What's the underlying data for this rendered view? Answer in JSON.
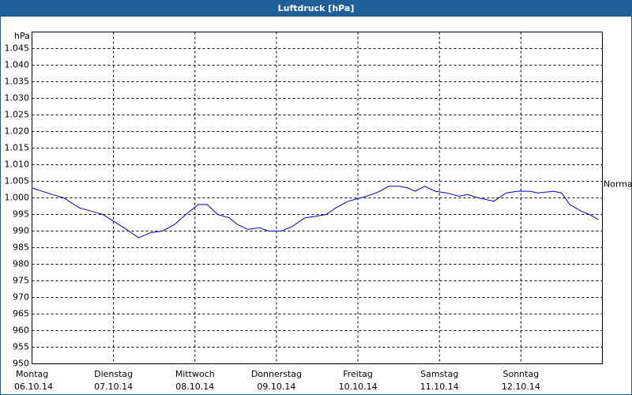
{
  "chart_data": {
    "type": "line",
    "title": "Luftdruck [hPa]",
    "y_unit": "hPa",
    "annotation": {
      "text": "Normal",
      "value": 1004
    },
    "xlim": [
      0,
      7
    ],
    "xticks": [
      {
        "value": 0,
        "label": "06.10.14"
      },
      {
        "value": 1,
        "label": "07.10.14"
      },
      {
        "value": 2,
        "label": "08.10.14"
      },
      {
        "value": 3,
        "label": "09.10.14"
      },
      {
        "value": 4,
        "label": "10.10.14"
      },
      {
        "value": 5,
        "label": "11.10.14"
      },
      {
        "value": 6,
        "label": "12.10.14"
      }
    ],
    "weekdays": [
      "Montag",
      "Dienstag",
      "Mittwoch",
      "Donnerstag",
      "Freitag",
      "Samstag",
      "Sonntag"
    ],
    "ylim": [
      950,
      1050
    ],
    "yticks": [
      950,
      955,
      960,
      965,
      970,
      975,
      980,
      985,
      990,
      995,
      {
        "value": 1000,
        "label": "1.000"
      },
      {
        "value": 1005,
        "label": "1.005"
      },
      {
        "value": 1010,
        "label": "1.010"
      },
      {
        "value": 1015,
        "label": "1.015"
      },
      {
        "value": 1020,
        "label": "1.020"
      },
      {
        "value": 1025,
        "label": "1.025"
      },
      {
        "value": 1030,
        "label": "1.030"
      },
      {
        "value": 1035,
        "label": "1.035"
      },
      {
        "value": 1040,
        "label": "1.040"
      },
      {
        "value": 1045,
        "label": "1.045"
      }
    ],
    "grid": true,
    "series": [
      {
        "color": "#0000c0",
        "x": [
          0,
          0.25,
          0.39,
          0.58,
          0.73,
          0.87,
          1.0,
          1.16,
          1.31,
          1.45,
          1.6,
          1.75,
          1.89,
          2.04,
          2.15,
          2.28,
          2.42,
          2.52,
          2.65,
          2.79,
          2.91,
          3.06,
          3.2,
          3.35,
          3.49,
          3.61,
          3.73,
          3.88,
          4.03,
          4.17,
          4.27,
          4.38,
          4.51,
          4.61,
          4.7,
          4.82,
          4.95,
          5.09,
          5.24,
          5.35,
          5.48,
          5.67,
          5.82,
          5.96,
          6.11,
          6.21,
          6.4,
          6.5,
          6.6,
          6.74,
          6.84,
          6.95
        ],
        "values": [
          1003,
          1001,
          1000,
          997,
          996,
          995,
          993,
          990.5,
          988,
          989.5,
          990,
          992,
          995,
          998,
          998,
          995,
          994,
          992,
          990.5,
          991,
          990,
          990,
          991.5,
          994,
          994.5,
          995,
          997,
          999,
          1000,
          1001,
          1002,
          1003.5,
          1003.5,
          1003,
          1002,
          1003.5,
          1002,
          1001.5,
          1000.5,
          1001,
          1000,
          999,
          1001.5,
          1002,
          1002,
          1001.5,
          1002,
          1001.5,
          998,
          996,
          995,
          993.5
        ]
      }
    ]
  }
}
